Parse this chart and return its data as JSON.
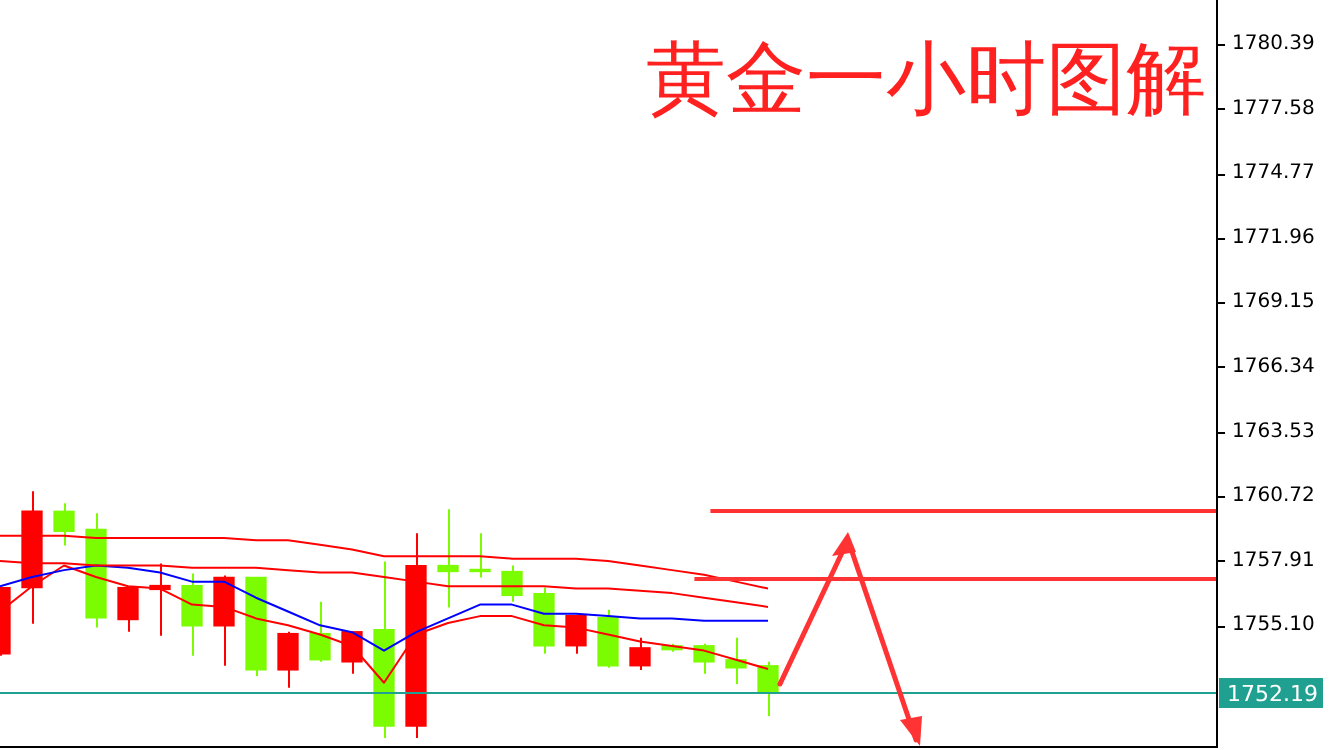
{
  "chart_data": {
    "type": "candlestick",
    "title": "黄金一小时图解",
    "categories": [
      null,
      null,
      null,
      null,
      null,
      null,
      null,
      null,
      null,
      null,
      null,
      null,
      null,
      null,
      null,
      null,
      null,
      null,
      null,
      null,
      null,
      null,
      null,
      null,
      null,
      null,
      null,
      null,
      null,
      null,
      null,
      null,
      null,
      null,
      null,
      null,
      null,
      null,
      null
    ],
    "ohlc": [
      [
        1753.86,
        1756.74,
        1753.78,
        1756.74
      ],
      [
        1756.74,
        1760.93,
        1755.17,
        1760.06
      ],
      [
        1760.06,
        1760.41,
        1758.57,
        1759.19
      ],
      [
        1759.27,
        1759.97,
        1755.0,
        1755.43
      ],
      [
        1755.35,
        1756.74,
        1754.82,
        1756.74
      ],
      [
        1756.66,
        1757.79,
        1754.65,
        1756.83
      ],
      [
        1756.83,
        1757.35,
        1753.78,
        1755.08
      ],
      [
        1755.08,
        1757.27,
        1753.34,
        1757.18
      ],
      [
        1757.18,
        1757.18,
        1752.9,
        1753.16
      ],
      [
        1753.16,
        1754.82,
        1752.38,
        1754.74
      ],
      [
        1754.74,
        1756.13,
        1753.51,
        1753.6
      ],
      [
        1753.51,
        1754.82,
        1752.99,
        1754.82
      ],
      [
        1754.91,
        1757.88,
        1750.2,
        1750.72
      ],
      [
        1750.72,
        1759.1,
        1750.2,
        1757.7
      ],
      [
        1757.7,
        1760.15,
        1755.87,
        1757.44
      ],
      [
        1757.53,
        1759.1,
        1757.18,
        1757.44
      ],
      [
        1757.44,
        1757.7,
        1756.13,
        1756.4
      ],
      [
        1756.48,
        1756.74,
        1753.86,
        1754.21
      ],
      [
        1754.21,
        1755.52,
        1753.86,
        1755.52
      ],
      [
        1755.43,
        1755.78,
        1753.25,
        1753.34
      ],
      [
        1753.34,
        1754.56,
        1753.16,
        1754.12
      ],
      [
        1754.21,
        1754.3,
        1753.95,
        1754.04
      ],
      [
        1754.21,
        1754.3,
        1752.99,
        1753.51
      ],
      [
        1753.6,
        1754.56,
        1752.55,
        1753.25
      ],
      [
        1753.34,
        1753.51,
        1751.16,
        1752.19
      ],
      null,
      null,
      null,
      null,
      null,
      null,
      null,
      null,
      null,
      null,
      null,
      null,
      null,
      null
    ],
    "colors": [
      "#ff0000",
      "#ff0000",
      "#7cfc00",
      "#7cfc00",
      "#ff0000",
      "#ff0000",
      "#7cfc00",
      "#ff0000",
      "#7cfc00",
      "#ff0000",
      "#7cfc00",
      "#ff0000",
      "#7cfc00",
      "#ff0000",
      "#7cfc00",
      "#7cfc00",
      "#7cfc00",
      "#7cfc00",
      "#ff0000",
      "#7cfc00",
      "#ff0000",
      "#7cfc00",
      "#7cfc00",
      "#7cfc00",
      "#7cfc00",
      null,
      null,
      null,
      null,
      null,
      null,
      null,
      null,
      null,
      null,
      null,
      null,
      null,
      null
    ],
    "series": [
      {
        "type": "line",
        "color": "#ff0000",
        "values": [
          1759.0,
          1759.0,
          1759.0,
          1758.9,
          1758.9,
          1758.9,
          1758.9,
          1758.9,
          1758.8,
          1758.8,
          1758.6,
          1758.4,
          1758.1,
          1758.1,
          1758.1,
          1758.1,
          1758.0,
          1758.0,
          1758.0,
          1757.9,
          1757.7,
          1757.5,
          1757.3,
          1757.0,
          1756.7,
          null,
          null,
          null,
          null,
          null,
          null,
          null,
          null,
          null,
          null,
          null,
          null,
          null,
          null
        ]
      },
      {
        "type": "line",
        "color": "#ff0000",
        "values": [
          1757.9,
          1757.8,
          1757.8,
          1757.7,
          1757.7,
          1757.7,
          1757.6,
          1757.6,
          1757.6,
          1757.5,
          1757.4,
          1757.4,
          1757.2,
          1757.0,
          1756.8,
          1756.8,
          1756.8,
          1756.8,
          1756.7,
          1756.7,
          1756.6,
          1756.5,
          1756.3,
          1756.1,
          1755.9,
          null,
          null,
          null,
          null,
          null,
          null,
          null,
          null,
          null,
          null,
          null,
          null,
          null,
          null
        ]
      },
      {
        "type": "line",
        "color": "#0000ff",
        "values": [
          1756.8,
          1757.2,
          1757.5,
          1757.7,
          1757.6,
          1757.4,
          1757.0,
          1757.0,
          1756.3,
          1755.7,
          1755.1,
          1754.8,
          1754.0,
          1754.8,
          1755.4,
          1756.0,
          1756.0,
          1755.6,
          1755.6,
          1755.5,
          1755.4,
          1755.4,
          1755.3,
          1755.3,
          1755.3,
          null,
          null,
          null,
          null,
          null,
          null,
          null,
          null,
          null,
          null,
          null,
          null,
          null,
          null
        ]
      },
      {
        "type": "line",
        "color": "#ff0000",
        "values": [
          1755.7,
          1756.8,
          1757.7,
          1757.2,
          1756.8,
          1756.7,
          1756.0,
          1755.9,
          1755.4,
          1755.1,
          1754.7,
          1754.2,
          1752.6,
          1754.7,
          1755.2,
          1755.5,
          1755.5,
          1755.1,
          1755.0,
          1754.7,
          1754.4,
          1754.2,
          1754.0,
          1753.6,
          1753.2,
          null,
          null,
          null,
          null,
          null,
          null,
          null,
          null,
          null,
          null,
          null,
          null,
          null,
          null
        ]
      }
    ],
    "ylim": [
      1749.85,
      1782.3
    ],
    "yticks": [
      {
        "value": 1755.1,
        "label": "1755.10"
      },
      1757.91,
      1760.72,
      1763.53,
      1766.34,
      1769.15,
      1771.96,
      1774.77,
      1777.58,
      1780.39
    ],
    "ref_lines": [
      {
        "axis": "y",
        "value": 1760.15,
        "color": "#ff3333"
      },
      {
        "axis": "y",
        "value": 1757.18,
        "color": "#ff3333"
      },
      {
        "axis": "y",
        "value": 1752.19,
        "label": "1752.19",
        "color": "#20a090"
      }
    ],
    "grid": false,
    "legend": false,
    "tick_labels": "y",
    "marker": "none"
  }
}
